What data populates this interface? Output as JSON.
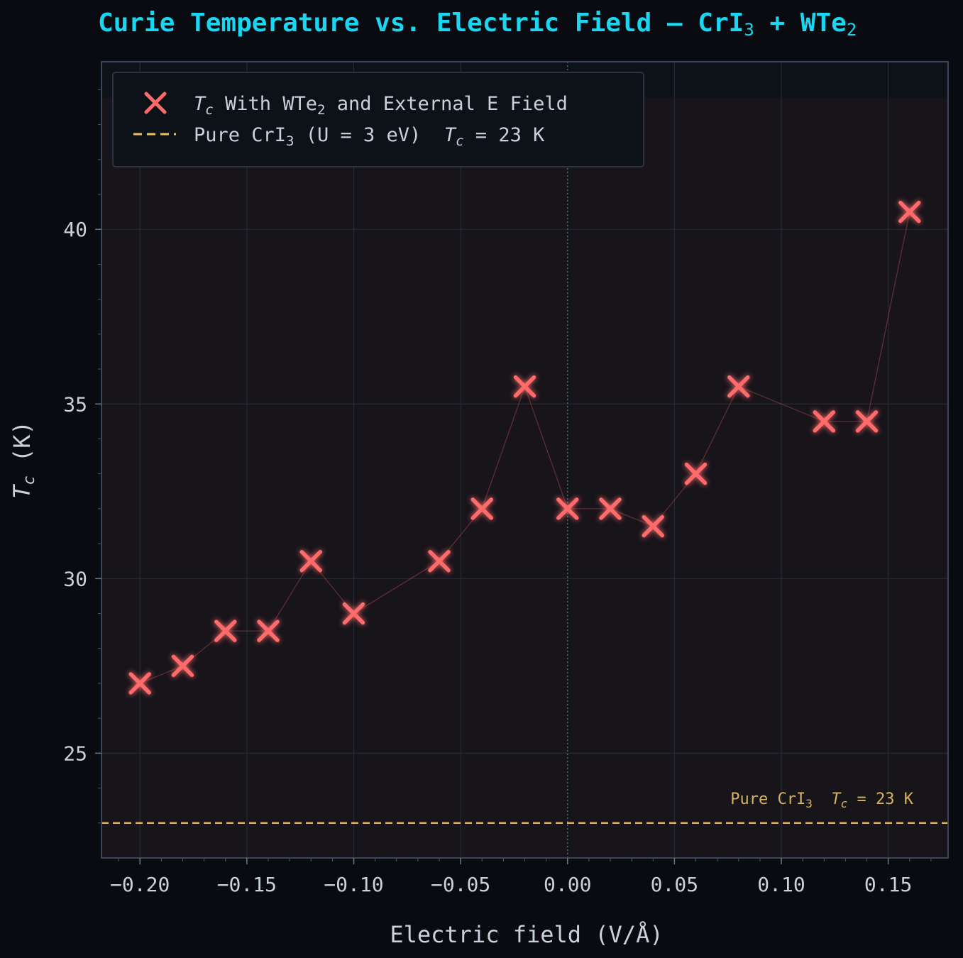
{
  "chart_data": {
    "type": "line",
    "title": "Curie Temperature vs. Electric Field — CrI",
    "title_sub1": "3",
    "title_mid": " + WTe",
    "title_sub2": "2",
    "xlabel": "Electric field  (V/Å)",
    "ylabel_main": "T",
    "ylabel_sub": "c",
    "ylabel_unit": "  (K)",
    "xlim": [
      -0.218,
      0.178
    ],
    "ylim": [
      22,
      44.8
    ],
    "x_ticks": [
      -0.2,
      -0.15,
      -0.1,
      -0.05,
      0.0,
      0.05,
      0.1,
      0.15
    ],
    "x_tick_labels": [
      "−0.20",
      "−0.15",
      "−0.10",
      "−0.05",
      "0.00",
      "0.05",
      "0.10",
      "0.15"
    ],
    "y_ticks": [
      25,
      30,
      35,
      40
    ],
    "y_tick_labels": [
      "25",
      "30",
      "35",
      "40"
    ],
    "grid": true,
    "legend_position": "top-left",
    "series": [
      {
        "name": "With WTe₂ and External E Field",
        "marker": "x",
        "color": "#ff6b6b",
        "x": [
          -0.2,
          -0.18,
          -0.16,
          -0.14,
          -0.12,
          -0.1,
          -0.06,
          -0.04,
          -0.02,
          0.0,
          0.02,
          0.04,
          0.06,
          0.08,
          0.12,
          0.14,
          0.16
        ],
        "y": [
          27,
          27.5,
          28.5,
          28.5,
          30.5,
          29,
          30.5,
          32,
          35.5,
          32,
          32,
          31.5,
          33,
          35.5,
          34.5,
          34.5,
          40.5
        ]
      }
    ],
    "reference_line": {
      "y": 23,
      "color": "#f0c060",
      "style": "dashed"
    },
    "legend": {
      "entry1_prefix": "T",
      "entry1_sub": "c",
      "entry1_text": " With WTe",
      "entry1_sub2": "2",
      "entry1_suffix": " and External E Field",
      "entry2_text": "Pure CrI",
      "entry2_sub": "3",
      "entry2_mid": " (U = 3 eV)  ",
      "entry2_T": "T",
      "entry2_Tsub": "c",
      "entry2_end": " = 23 K"
    },
    "annotation": {
      "text": "Pure CrI",
      "sub": "3",
      "mid": "  ",
      "T": "T",
      "Tsub": "c",
      "end": " = 23 K"
    }
  }
}
